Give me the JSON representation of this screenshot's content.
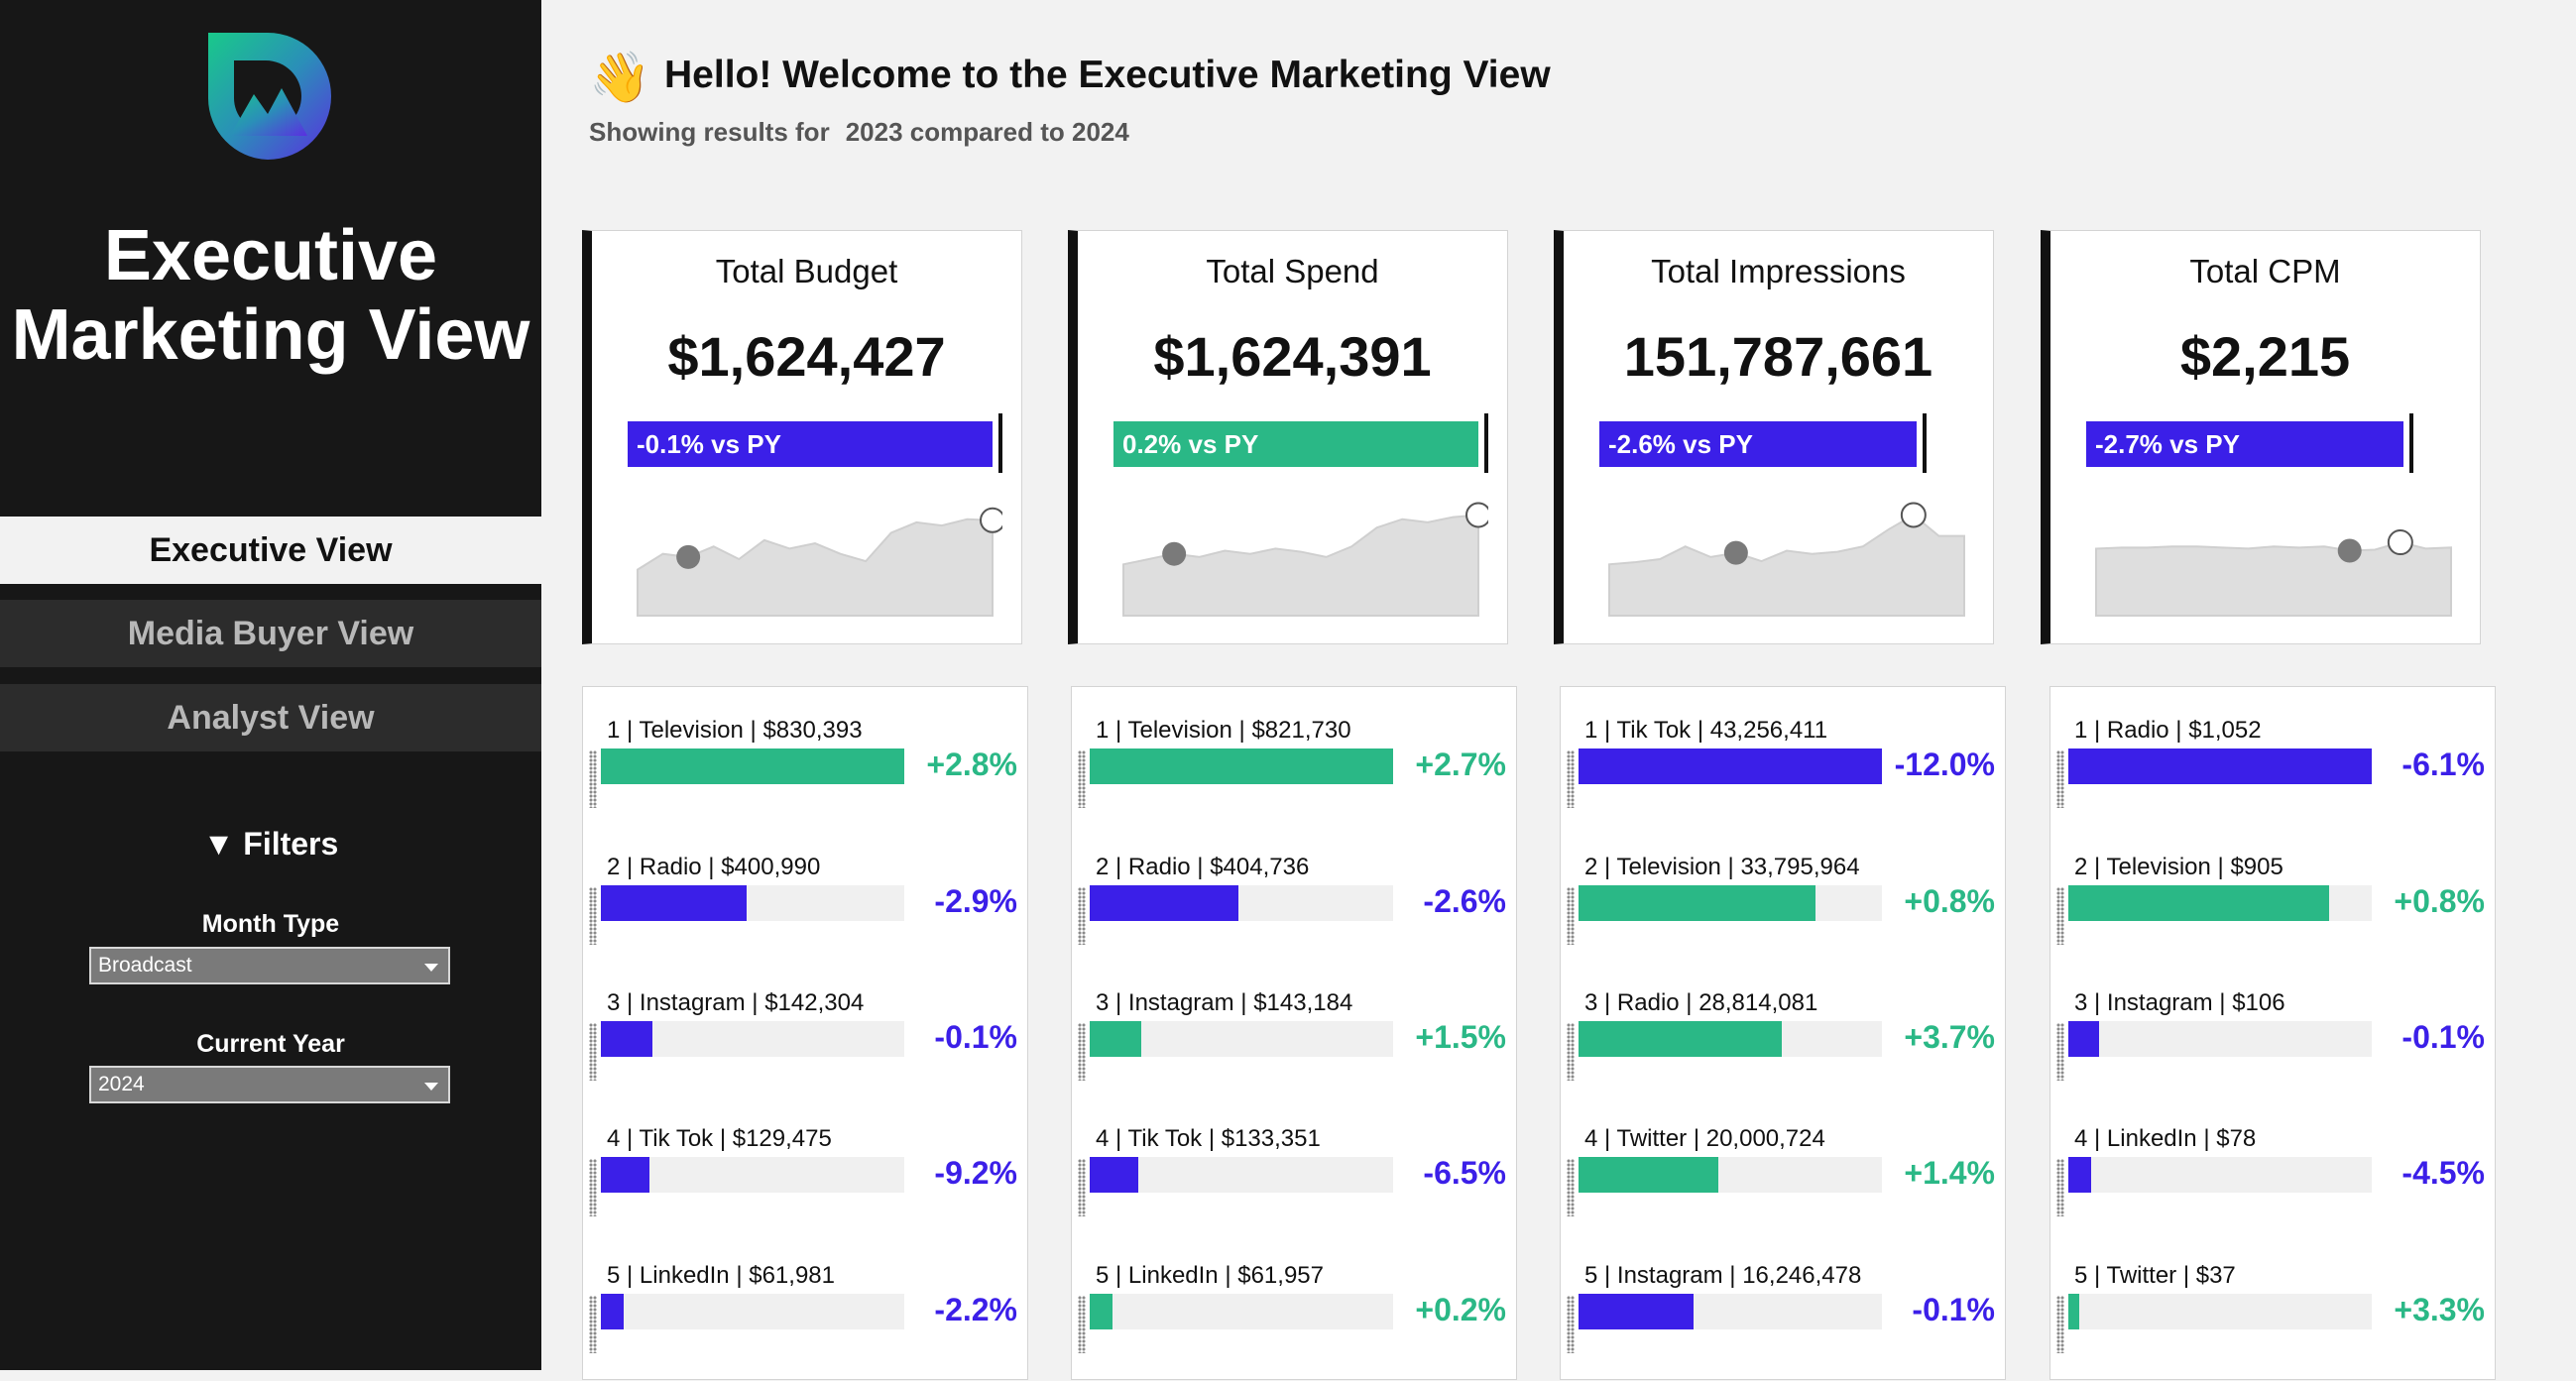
{
  "colors": {
    "positive": "#2ab886",
    "negative": "#3b1fe8",
    "sidebar_bg": "#171717",
    "page_bg": "#f2f2f2"
  },
  "sidebar": {
    "logo_icon": "mountain-d-logo-icon",
    "title": "Executive Marketing View",
    "nav": [
      {
        "label": "Executive View",
        "active": true
      },
      {
        "label": "Media Buyer View",
        "active": false
      },
      {
        "label": "Analyst View",
        "active": false
      }
    ],
    "filters_heading": "▼ Filters",
    "filters": [
      {
        "label": "Month Type",
        "value": "Broadcast"
      },
      {
        "label": "Current Year",
        "value": "2024"
      }
    ]
  },
  "header": {
    "wave_icon": "👋",
    "greeting": "Hello! Welcome to the Executive Marketing View",
    "subtitle_prefix": "Showing results for",
    "subtitle_range": "2023 compared to 2024"
  },
  "kpis": [
    {
      "title": "Total Budget",
      "value": "$1,624,427",
      "delta": "-0.1% vs PY",
      "direction": "negative",
      "spark": [
        0.4,
        0.55,
        0.52,
        0.62,
        0.5,
        0.68,
        0.6,
        0.65,
        0.55,
        0.48,
        0.75,
        0.85,
        0.82,
        0.88,
        0.87
      ],
      "spark_low_index": 2,
      "spark_high_index": 14
    },
    {
      "title": "Total Spend",
      "value": "$1,624,391",
      "delta": "0.2% vs PY",
      "direction": "positive",
      "spark": [
        0.45,
        0.5,
        0.55,
        0.52,
        0.58,
        0.55,
        0.6,
        0.57,
        0.52,
        0.62,
        0.8,
        0.88,
        0.85,
        0.9,
        0.92
      ],
      "spark_low_index": 2,
      "spark_high_index": 14
    },
    {
      "title": "Total Impressions",
      "value": "151,787,661",
      "delta": "-2.6% vs PY",
      "direction": "negative",
      "spark": [
        0.45,
        0.47,
        0.5,
        0.62,
        0.52,
        0.56,
        0.48,
        0.58,
        0.55,
        0.57,
        0.62,
        0.78,
        0.92,
        0.72,
        0.72
      ],
      "spark_low_index": 5,
      "spark_high_index": 12
    },
    {
      "title": "Total CPM",
      "value": "$2,215",
      "delta": "-2.7% vs PY",
      "direction": "negative",
      "spark": [
        0.6,
        0.61,
        0.61,
        0.62,
        0.62,
        0.61,
        0.6,
        0.62,
        0.61,
        0.62,
        0.58,
        0.59,
        0.66,
        0.6,
        0.61
      ],
      "spark_low_index": 10,
      "spark_high_index": 12
    }
  ],
  "rankings": [
    {
      "rows": [
        {
          "label": "1 | Television | $830,393",
          "fill": 1.0,
          "change": "+2.8%",
          "direction": "positive"
        },
        {
          "label": "2 | Radio | $400,990",
          "fill": 0.48,
          "change": "-2.9%",
          "direction": "negative"
        },
        {
          "label": "3 | Instagram | $142,304",
          "fill": 0.17,
          "change": "-0.1%",
          "direction": "negative"
        },
        {
          "label": "4 | Tik Tok | $129,475",
          "fill": 0.16,
          "change": "-9.2%",
          "direction": "negative"
        },
        {
          "label": "5 | LinkedIn | $61,981",
          "fill": 0.075,
          "change": "-2.2%",
          "direction": "negative"
        }
      ]
    },
    {
      "rows": [
        {
          "label": "1 | Television | $821,730",
          "fill": 1.0,
          "change": "+2.7%",
          "direction": "positive"
        },
        {
          "label": "2 | Radio | $404,736",
          "fill": 0.49,
          "change": "-2.6%",
          "direction": "negative"
        },
        {
          "label": "3 | Instagram | $143,184",
          "fill": 0.17,
          "change": "+1.5%",
          "direction": "positive"
        },
        {
          "label": "4 | Tik Tok | $133,351",
          "fill": 0.16,
          "change": "-6.5%",
          "direction": "negative"
        },
        {
          "label": "5 | LinkedIn | $61,957",
          "fill": 0.075,
          "change": "+0.2%",
          "direction": "positive"
        }
      ]
    },
    {
      "rows": [
        {
          "label": "1 | Tik Tok | 43,256,411",
          "fill": 1.0,
          "change": "-12.0%",
          "direction": "negative"
        },
        {
          "label": "2 | Television | 33,795,964",
          "fill": 0.78,
          "change": "+0.8%",
          "direction": "positive"
        },
        {
          "label": "3 | Radio | 28,814,081",
          "fill": 0.67,
          "change": "+3.7%",
          "direction": "positive"
        },
        {
          "label": "4 | Twitter | 20,000,724",
          "fill": 0.46,
          "change": "+1.4%",
          "direction": "positive"
        },
        {
          "label": "5 | Instagram | 16,246,478",
          "fill": 0.38,
          "change": "-0.1%",
          "direction": "negative"
        }
      ]
    },
    {
      "rows": [
        {
          "label": "1 | Radio | $1,052",
          "fill": 1.0,
          "change": "-6.1%",
          "direction": "negative"
        },
        {
          "label": "2 | Television | $905",
          "fill": 0.86,
          "change": "+0.8%",
          "direction": "positive"
        },
        {
          "label": "3 | Instagram | $106",
          "fill": 0.1,
          "change": "-0.1%",
          "direction": "negative"
        },
        {
          "label": "4 | LinkedIn | $78",
          "fill": 0.074,
          "change": "-4.5%",
          "direction": "negative"
        },
        {
          "label": "5 | Twitter | $37",
          "fill": 0.035,
          "change": "+3.3%",
          "direction": "positive"
        }
      ]
    }
  ]
}
